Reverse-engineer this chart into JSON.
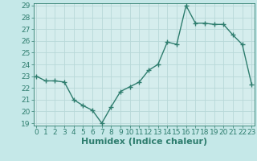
{
  "x": [
    0,
    1,
    2,
    3,
    4,
    5,
    6,
    7,
    8,
    9,
    10,
    11,
    12,
    13,
    14,
    15,
    16,
    17,
    18,
    19,
    20,
    21,
    22,
    23
  ],
  "y": [
    23.0,
    22.6,
    22.6,
    22.5,
    21.0,
    20.5,
    20.1,
    19.0,
    20.4,
    21.7,
    22.1,
    22.5,
    23.5,
    24.0,
    25.9,
    25.7,
    29.0,
    27.5,
    27.5,
    27.4,
    27.4,
    26.5,
    25.7,
    22.3
  ],
  "line_color": "#2e7d6e",
  "marker": "+",
  "marker_size": 4,
  "line_width": 1.0,
  "bg_color": "#c5e8e8",
  "plot_bg_color": "#d5eded",
  "grid_color": "#b8d8d8",
  "xlabel": "Humidex (Indice chaleur)",
  "xlabel_fontsize": 8,
  "tick_fontsize": 6.5,
  "ylim_min": 19,
  "ylim_max": 29,
  "xlim_min": -0.3,
  "xlim_max": 23.3,
  "yticks": [
    19,
    20,
    21,
    22,
    23,
    24,
    25,
    26,
    27,
    28,
    29
  ],
  "xticks": [
    0,
    1,
    2,
    3,
    4,
    5,
    6,
    7,
    8,
    9,
    10,
    11,
    12,
    13,
    14,
    15,
    16,
    17,
    18,
    19,
    20,
    21,
    22,
    23
  ]
}
